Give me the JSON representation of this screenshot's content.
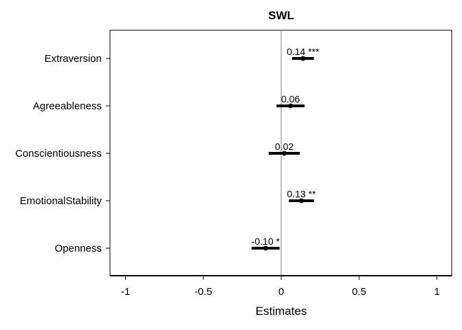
{
  "chart_data": {
    "type": "forest",
    "title": "SWL",
    "xlabel": "Estimates",
    "ylabel": "",
    "xlim": [
      -1.1,
      1.1
    ],
    "xticks": [
      -1,
      -0.5,
      0,
      0.5,
      1
    ],
    "xtick_labels": [
      "-1",
      "-0.5",
      "0",
      "0.5",
      "1"
    ],
    "reference_line": 0,
    "grid": false,
    "legend": "none",
    "colors": {
      "estimate": "#000000",
      "reference_line": "#808080"
    },
    "terms": [
      {
        "label": "Extraversion",
        "estimate": 0.14,
        "ci": [
          0.07,
          0.21
        ],
        "annotation": "0.14 ***"
      },
      {
        "label": "Agreeableness",
        "estimate": 0.06,
        "ci": [
          -0.03,
          0.15
        ],
        "annotation": "0.06"
      },
      {
        "label": "Conscientiousness",
        "estimate": 0.02,
        "ci": [
          -0.08,
          0.12
        ],
        "annotation": "0.02"
      },
      {
        "label": "EmotionalStability",
        "estimate": 0.13,
        "ci": [
          0.05,
          0.21
        ],
        "annotation": "0.13 **"
      },
      {
        "label": "Openness",
        "estimate": -0.1,
        "ci": [
          -0.19,
          -0.01
        ],
        "annotation": "-0.10 *"
      }
    ]
  }
}
